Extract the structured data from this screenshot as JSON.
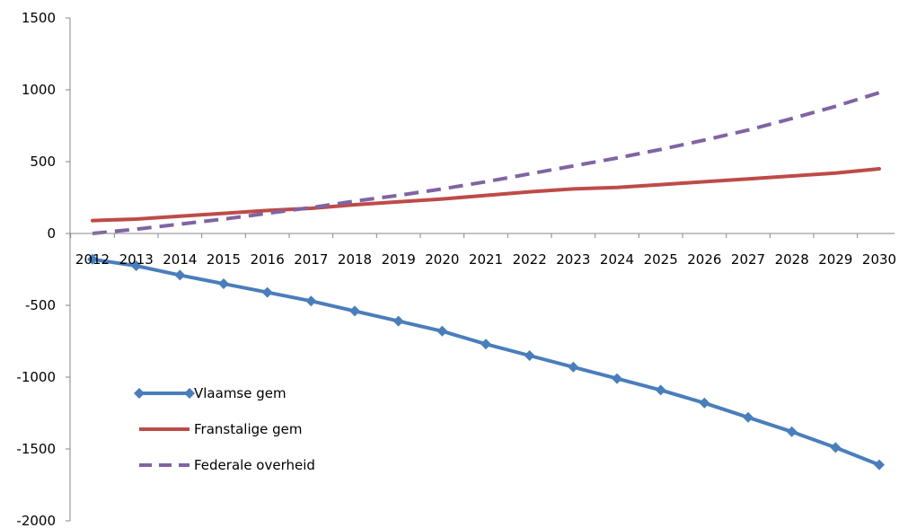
{
  "chart_data": {
    "type": "line",
    "title": "",
    "xlabel": "",
    "ylabel": "",
    "categories": [
      "2012",
      "2013",
      "2014",
      "2015",
      "2016",
      "2017",
      "2018",
      "2019",
      "2020",
      "2021",
      "2022",
      "2023",
      "2024",
      "2025",
      "2026",
      "2027",
      "2028",
      "2029",
      "2030"
    ],
    "ylim": [
      -2000,
      1500
    ],
    "yticks": [
      1500,
      1000,
      500,
      0,
      -500,
      -1000,
      -1500,
      -2000
    ],
    "grid": false,
    "legend_position": "bottom-left",
    "series": [
      {
        "name": "Vlaamse gem",
        "color": "#4a7ebb",
        "line_style": "solid",
        "marker": "diamond",
        "values": [
          -180,
          -225,
          -290,
          -350,
          -410,
          -470,
          -540,
          -610,
          -680,
          -770,
          -850,
          -930,
          -1010,
          -1090,
          -1180,
          -1280,
          -1380,
          -1490,
          -1610
        ]
      },
      {
        "name": "Franstalige gem",
        "color": "#be4b48",
        "line_style": "solid",
        "marker": "none",
        "values": [
          90,
          100,
          120,
          140,
          160,
          175,
          200,
          220,
          240,
          265,
          290,
          310,
          320,
          340,
          360,
          380,
          400,
          420,
          450
        ]
      },
      {
        "name": "Federale overheid",
        "color": "#8064a2",
        "line_style": "dashed",
        "marker": "none",
        "values": [
          0,
          30,
          65,
          100,
          140,
          180,
          225,
          265,
          310,
          360,
          415,
          470,
          525,
          585,
          650,
          720,
          800,
          885,
          980
        ]
      }
    ]
  }
}
